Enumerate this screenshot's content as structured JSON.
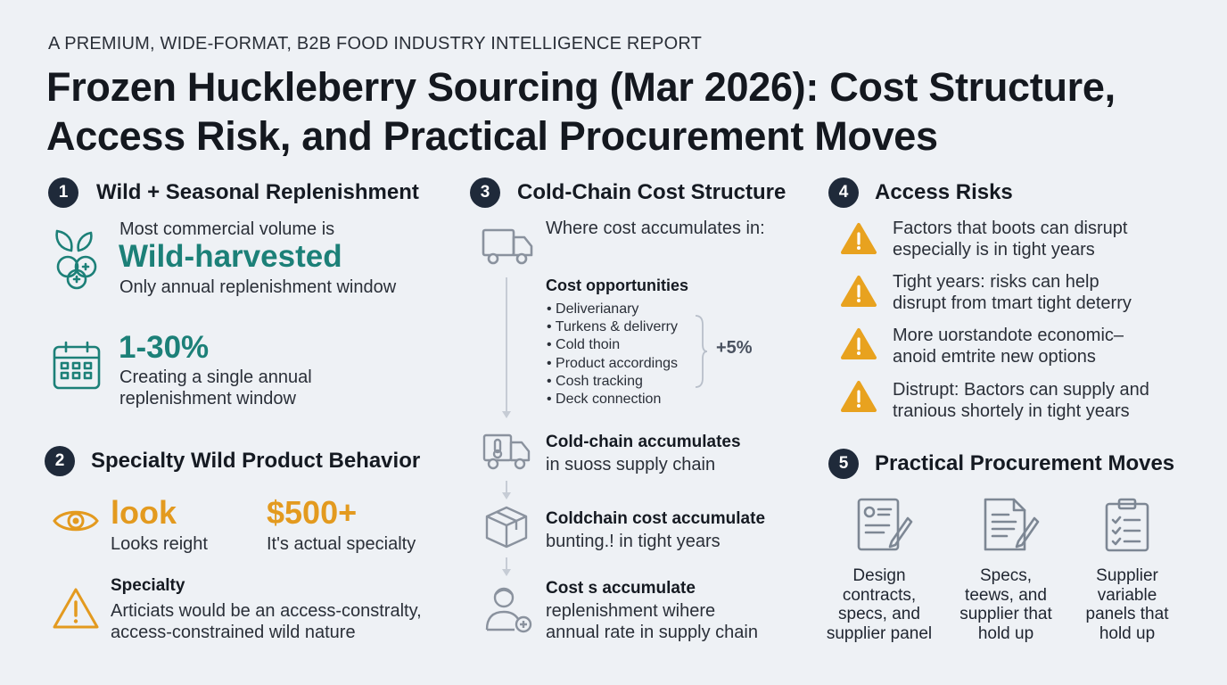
{
  "header": {
    "eyebrow": "A PREMIUM, WIDE-FORMAT, B2B FOOD INDUSTRY INTELLIGENCE REPORT",
    "title_line1": "Frozen Huckleberry Sourcing (Mar 2026): Cost Structure,",
    "title_line2": "Access Risk, and Practical Procurement Moves"
  },
  "s1": {
    "num": "1",
    "title": "Wild + Seasonal Replenishment",
    "lead": "Most commercial volume is",
    "highlight": "Wild-harvested",
    "sub": "Only annual replenishment window",
    "stat": "1-30%",
    "stat_line1": "Creating a single annual",
    "stat_line2": "replenishment window",
    "icons": [
      "berry-icon",
      "calendar-icon"
    ]
  },
  "s2": {
    "num": "2",
    "title": "Specialty Wild Product Behavior",
    "k1_value": "look",
    "k1_label": "Looks reight",
    "k2_value": "$500+",
    "k2_label": "It's actual specialty",
    "note_title": "Specialty",
    "note_line1": "Articiats would be an access-constralty,",
    "note_line2": "access-constrained wild nature",
    "icons": [
      "eye-icon",
      "warning-icon"
    ]
  },
  "s3": {
    "num": "3",
    "title": "Cold-Chain Cost Structure",
    "lead": "Where cost accumulates in:",
    "opp_title": "Cost opportunities",
    "bullets": [
      "Deliverianary",
      "Turkens & deliverry",
      "Cold thoin",
      "Product accordings",
      "Cosh tracking",
      "Deck connection"
    ],
    "bracket_value": "+5%",
    "step1_title": "Cold-chain accumulates",
    "step1_sub": "in suoss supply chain",
    "step2_title": "Coldchain cost accumulate",
    "step2_sub": "bunting.! in tight years",
    "step3_title": "Cost s accumulate",
    "step3_line1": "replenishment wihere",
    "step3_line2": "annual rate in supply chain",
    "icons": [
      "truck-icon",
      "thermometer-truck-icon",
      "box-icon",
      "worker-icon"
    ]
  },
  "s4": {
    "num": "4",
    "title": "Access Risks",
    "risks": [
      {
        "line1": "Factors that boots can disrupt",
        "line2": "especially is in tight years"
      },
      {
        "line1": "Tight years: risks can help",
        "line2": "disrupt from tmart tight deterry"
      },
      {
        "line1": "More uorstandote economic–",
        "line2": "anoid emtrite new options"
      },
      {
        "line1": "Distrupt: Bactors can supply and",
        "line2": "tranious shortely in tight years"
      }
    ],
    "icon": "warning-icon"
  },
  "s5": {
    "num": "5",
    "title": "Practical Procurement Moves",
    "moves": [
      {
        "l1": "Design",
        "l2": "contracts,",
        "l3": "specs, and",
        "l4": "supplier panel"
      },
      {
        "l1": "Specs,",
        "l2": "teews, and",
        "l3": "supplier that",
        "l4": "hold up"
      },
      {
        "l1": "Supplier",
        "l2": "variable",
        "l3": "panels that",
        "l4": "hold up"
      }
    ],
    "icons": [
      "contract-pen-icon",
      "document-pen-icon",
      "checklist-icon"
    ]
  },
  "colors": {
    "teal": "#1c8078",
    "amber": "#e39a1f",
    "badge": "#1f2a3a",
    "background": "#eef1f5"
  }
}
